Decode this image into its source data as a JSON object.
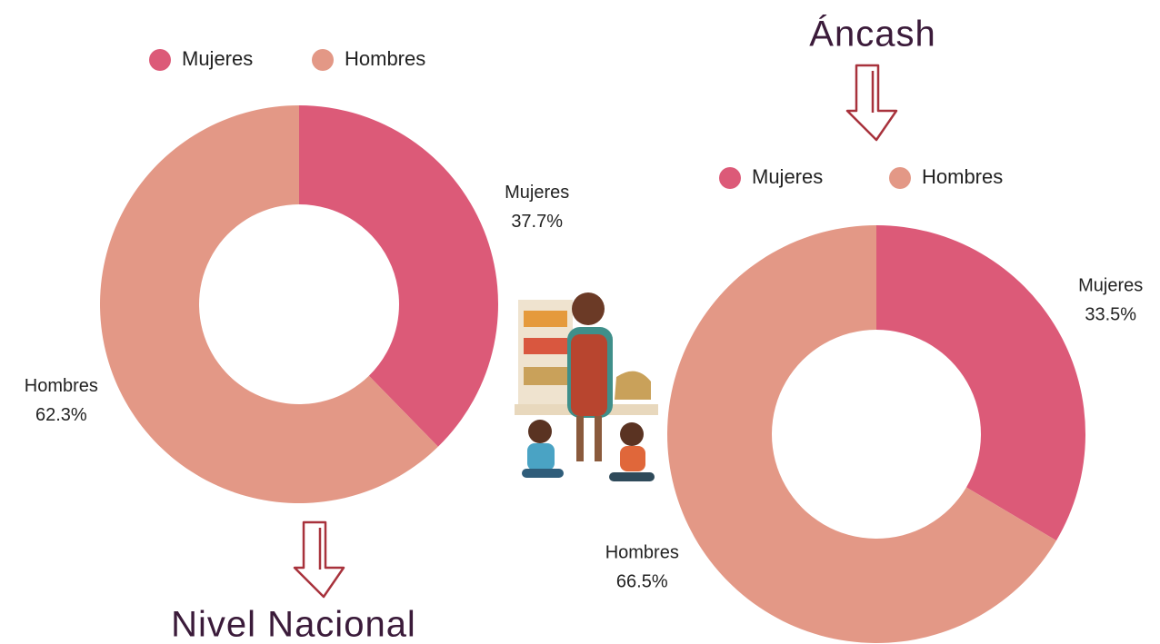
{
  "chart_data": [
    {
      "type": "donut",
      "title": "Nivel Nacional",
      "categories": [
        "Mujeres",
        "Hombres"
      ],
      "values": [
        37.7,
        62.3
      ],
      "value_labels": [
        "37.7%",
        "62.3%"
      ],
      "colors": [
        "#dc5a78",
        "#e39886"
      ]
    },
    {
      "type": "donut",
      "title": "Áncash",
      "categories": [
        "Mujeres",
        "Hombres"
      ],
      "values": [
        33.5,
        66.5
      ],
      "value_labels": [
        "33.5%",
        "66.5%"
      ],
      "colors": [
        "#dc5a78",
        "#e39886"
      ]
    }
  ]
}
